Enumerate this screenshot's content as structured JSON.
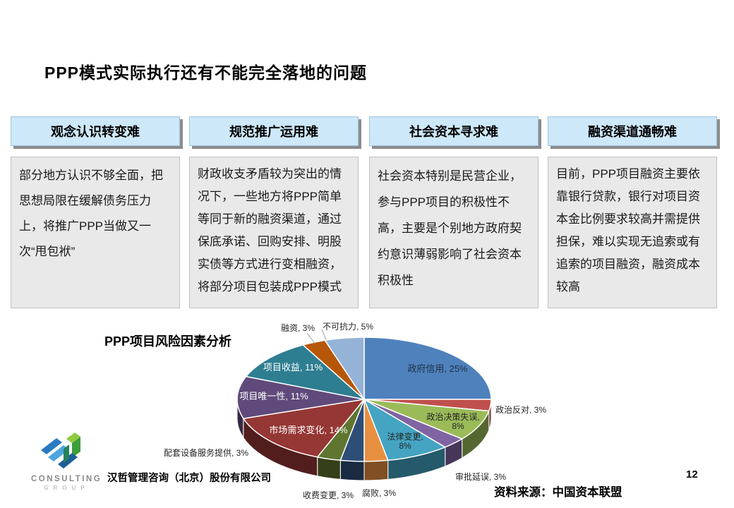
{
  "slide": {
    "title": "PPP模式实际执行还有不能完全落地的问题",
    "page_number": "12",
    "source": "资料来源：中国资本联盟",
    "company": "汉哲管理咨询（北京）股份有限公司",
    "logo": {
      "line1": "CONSULTING",
      "line2": "GROUP"
    }
  },
  "columns": [
    {
      "header": "观念认识转变难",
      "body": "部分地方认识不够全面，把思想局限在缓解债务压力上，将推广PPP当做又一次“甩包袱”"
    },
    {
      "header": "规范推广运用难",
      "body": "财政收支矛盾较为突出的情况下，一些地方将PPP简单等同于新的融资渠道，通过保底承诺、回购安排、明股实债等方式进行变相融资，将部分项目包装成PPP模式"
    },
    {
      "header": "社会资本寻求难",
      "body": "社会资本特别是民营企业，参与PPP项目的积极性不高，主要是个别地方政府契约意识薄弱影响了社会资本积极性"
    },
    {
      "header": "融资渠道通畅难",
      "body": "目前，PPP项目融资主要依靠银行贷款，银行对项目资本金比例要求较高并需提供担保，难以实现无追索或有追索的项目融资，融资成本较高"
    }
  ],
  "colors": {
    "header_bg": "#CDE8F9",
    "header_border": "#9CC3DB",
    "box_bg": "#E9E9E9"
  },
  "chart_data": {
    "type": "pie",
    "style": "3d",
    "title": "PPP项目风险因素分析",
    "categories": [
      "政府信用",
      "政治反对",
      "政治决策失误",
      "审批延误",
      "法律变更",
      "腐败",
      "收费变更",
      "配套设备服务提供",
      "市场需求变化",
      "项目唯一性",
      "项目收益",
      "融资",
      "不可抗力"
    ],
    "values": [
      25,
      3,
      8,
      3,
      8,
      3,
      3,
      3,
      14,
      11,
      11,
      3,
      5
    ],
    "colors": [
      "#4F81BD",
      "#C0504D",
      "#9BBB59",
      "#8064A2",
      "#44A4C2",
      "#E89041",
      "#2E4D77",
      "#5F7530",
      "#953735",
      "#604A7B",
      "#2E7E91",
      "#B65708",
      "#95B3D7"
    ],
    "label_format": "category, value%",
    "legend": "none",
    "start_angle_deg": 0,
    "direction": "clockwise"
  }
}
